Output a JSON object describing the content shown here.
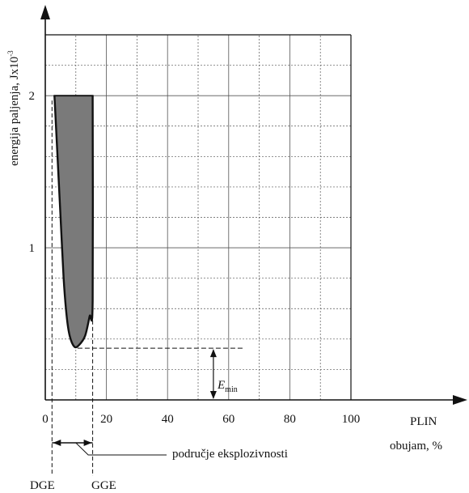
{
  "chart_data": {
    "type": "area",
    "title": "",
    "ylabel_main": "energija paljenja, Jx10",
    "ylabel_exp": "-3",
    "xlabel_line1": "PLIN",
    "xlabel_line2": "obujam, %",
    "xlim": [
      0,
      100
    ],
    "ylim": [
      0,
      2.4
    ],
    "x_ticks": [
      {
        "value": 0,
        "label": "0"
      },
      {
        "value": 20,
        "label": "20"
      },
      {
        "value": 40,
        "label": "40"
      },
      {
        "value": 60,
        "label": "60"
      },
      {
        "value": 80,
        "label": "80"
      },
      {
        "value": 100,
        "label": "100"
      }
    ],
    "y_ticks": [
      {
        "value": 1,
        "label": "1"
      },
      {
        "value": 2,
        "label": "2"
      }
    ],
    "grid": true,
    "grid_minor_x": 10,
    "grid_minor_y": 0.2,
    "fill_color": "#7a7a7a",
    "curve": {
      "left": [
        [
          3,
          2.0
        ],
        [
          4,
          1.6
        ],
        [
          5,
          1.2
        ],
        [
          6,
          0.8
        ],
        [
          7,
          0.55
        ],
        [
          8,
          0.42
        ],
        [
          9.5,
          0.35
        ]
      ],
      "bottom": [
        9.5,
        0.35
      ],
      "right": [
        [
          9.5,
          0.35
        ],
        [
          11,
          0.36
        ],
        [
          13,
          0.42
        ],
        [
          14.5,
          0.55
        ],
        [
          15.5,
          0.65
        ],
        [
          15.5,
          2.0
        ]
      ]
    },
    "e_min": {
      "value": 0.34,
      "x": 55,
      "label_main": "E",
      "label_sub": "min"
    },
    "DGE": {
      "x": 2.2,
      "label": "DGE"
    },
    "GGE": {
      "x": 15.5,
      "label": "GGE"
    },
    "range_label": "područje eksplozivnosti"
  }
}
